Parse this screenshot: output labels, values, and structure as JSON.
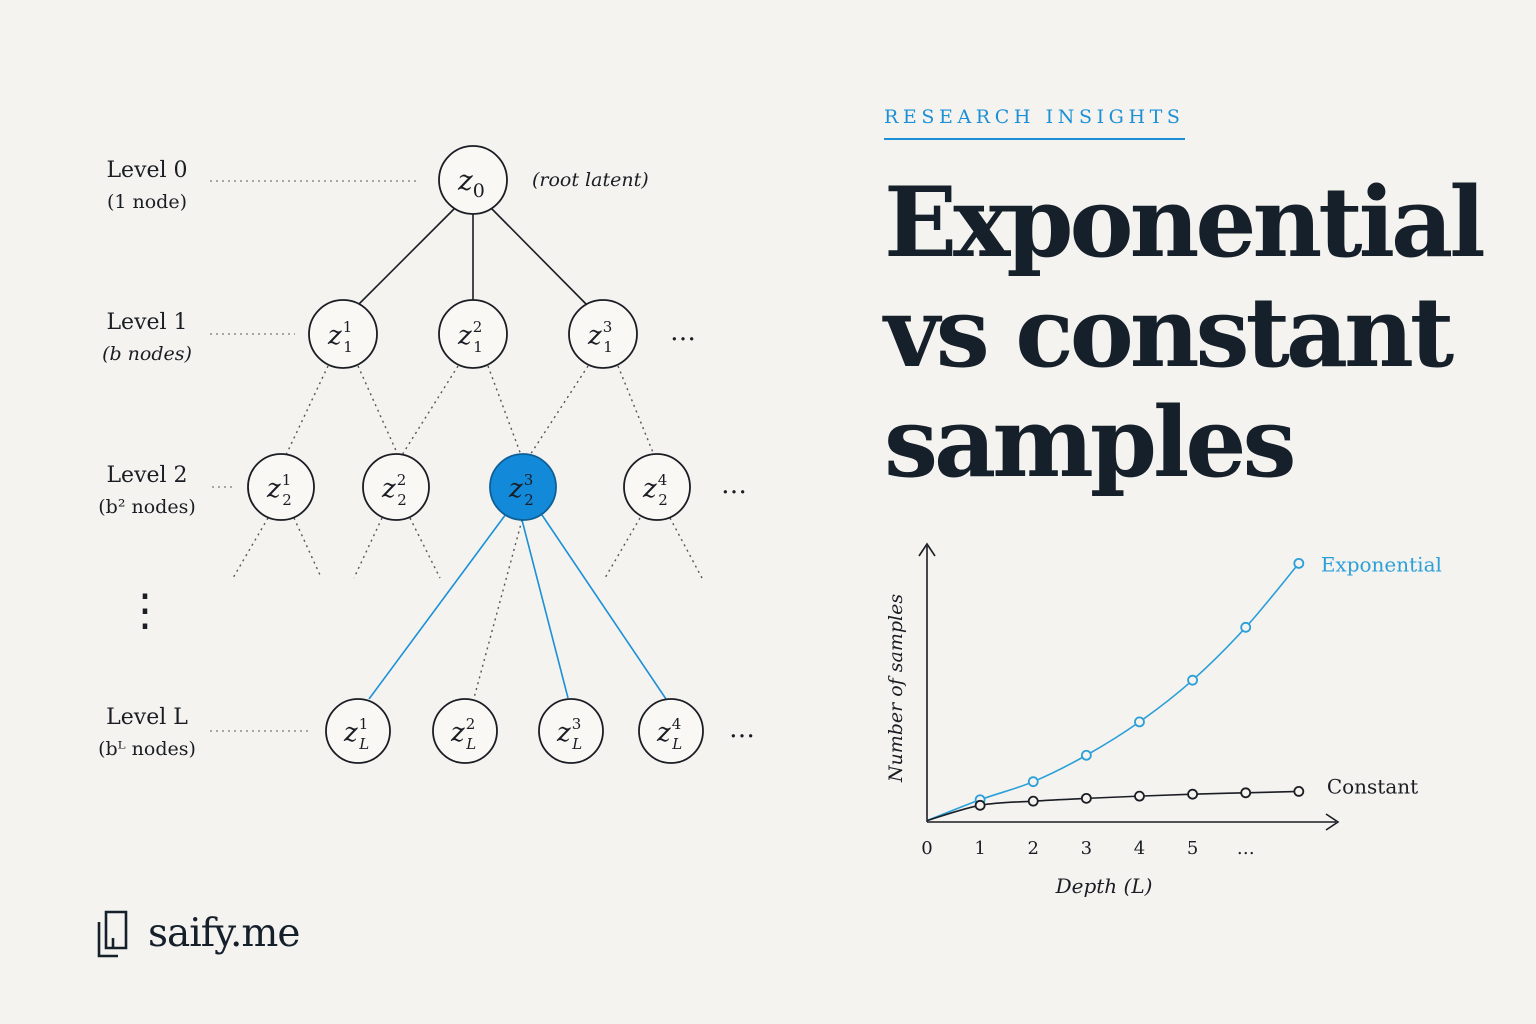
{
  "tree": {
    "levels": [
      {
        "title": "Level 0",
        "sub": "(1 node)"
      },
      {
        "title": "Level 1",
        "sub": "(b nodes)"
      },
      {
        "title": "Level 2",
        "sub": "(b² nodes)"
      },
      {
        "title": "Level L",
        "sub": "(bᴸ nodes)"
      }
    ],
    "root_note": "(root latent)",
    "ellipsis": "…",
    "vertical_ellipsis": "⋮",
    "nodes": {
      "root": {
        "base": "z",
        "sub": "0",
        "sup": ""
      },
      "level1": [
        {
          "base": "z",
          "sub": "1",
          "sup": "1"
        },
        {
          "base": "z",
          "sub": "1",
          "sup": "2"
        },
        {
          "base": "z",
          "sub": "1",
          "sup": "3"
        }
      ],
      "level2": [
        {
          "base": "z",
          "sub": "2",
          "sup": "1"
        },
        {
          "base": "z",
          "sub": "2",
          "sup": "2"
        },
        {
          "base": "z",
          "sub": "2",
          "sup": "3"
        },
        {
          "base": "z",
          "sub": "2",
          "sup": "4"
        }
      ],
      "levelL": [
        {
          "base": "z",
          "sub": "L",
          "sup": "1"
        },
        {
          "base": "z",
          "sub": "L",
          "sup": "2"
        },
        {
          "base": "z",
          "sub": "L",
          "sup": "3"
        },
        {
          "base": "z",
          "sub": "L",
          "sup": "4"
        }
      ]
    },
    "highlighted_node": "z_2^3"
  },
  "eyebrow": "RESEARCH INSIGHTS",
  "headline": [
    "Exponential",
    "vs constant",
    "samples"
  ],
  "chart_data": {
    "type": "line",
    "xlabel": "Depth (L)",
    "ylabel": "Number of samples",
    "x_ticks": [
      "0",
      "1",
      "2",
      "3",
      "4",
      "5",
      "…"
    ],
    "series": [
      {
        "name": "Exponential",
        "color": "#2a9fd8",
        "x": [
          0,
          1,
          2,
          3,
          4,
          5,
          6,
          7
        ],
        "y": [
          0.05,
          0.8,
          1.45,
          2.4,
          3.6,
          5.1,
          7.0,
          9.3
        ]
      },
      {
        "name": "Constant",
        "color": "#1a1d23",
        "x": [
          0,
          1,
          2,
          3,
          4,
          5,
          6,
          7
        ],
        "y": [
          0.05,
          0.6,
          0.75,
          0.85,
          0.93,
          1.0,
          1.05,
          1.1
        ]
      }
    ],
    "xlim": [
      0,
      7.7
    ],
    "ylim": [
      0,
      10.5
    ],
    "grid": false
  },
  "brand": {
    "name": "saify.me",
    "logo_icon": "document-logo-icon"
  },
  "colors": {
    "accent": "#1b90d6",
    "highlight_node": "#1289d9",
    "ink": "#16202a",
    "background": "#f4f3f0"
  }
}
